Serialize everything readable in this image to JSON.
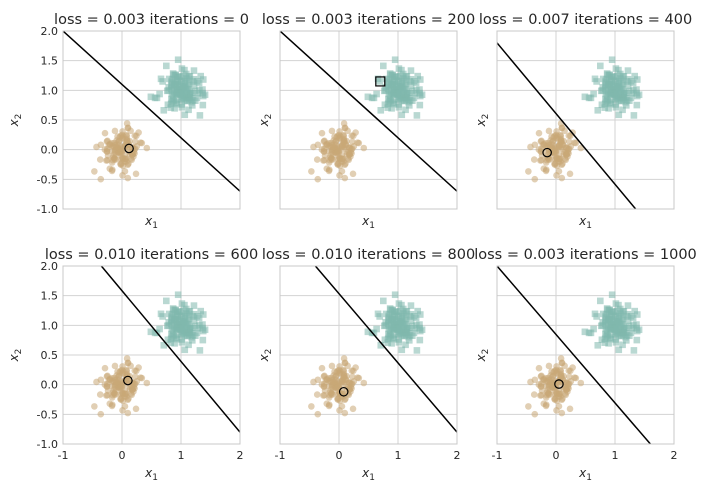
{
  "chart_data": {
    "type": "scatter",
    "figure": {
      "x_label_main": "x",
      "x_label_sub": "1",
      "y_label_main": "x",
      "y_label_sub": "2",
      "xlim": [
        -1,
        2
      ],
      "ylim": [
        -1,
        2
      ],
      "x_ticks": [
        -1,
        0,
        1,
        2
      ],
      "y_ticks": [
        -1.0,
        -0.5,
        0.0,
        0.5,
        1.0,
        1.5,
        2.0
      ],
      "grid": true,
      "colors": {
        "class0": "#c9a777",
        "class1": "#7fb8ad",
        "boundary": "#000000",
        "grid": "#d3d3d3",
        "spine": "#c8c8c8"
      },
      "clusters": {
        "class0": {
          "center": [
            0.0,
            0.0
          ],
          "spread": 0.18,
          "count": 130,
          "marker": "circle"
        },
        "class1": {
          "center": [
            1.0,
            1.0
          ],
          "spread": 0.18,
          "count": 130,
          "marker": "square"
        }
      }
    },
    "panels": [
      {
        "title": "loss = 0.003 iterations = 0",
        "show_x_ticks": false,
        "show_y_ticks": true,
        "boundary": [
          [
            -1,
            2.0
          ],
          [
            2,
            -0.7
          ]
        ],
        "highlight": {
          "x": 0.12,
          "y": 0.02,
          "marker": "circle"
        }
      },
      {
        "title": "loss = 0.003 iterations = 200",
        "show_x_ticks": false,
        "show_y_ticks": false,
        "boundary": [
          [
            -1,
            2.0
          ],
          [
            2,
            -0.7
          ]
        ],
        "highlight": {
          "x": 0.7,
          "y": 1.15,
          "marker": "square"
        }
      },
      {
        "title": "loss = 0.007 iterations = 400",
        "show_x_ticks": false,
        "show_y_ticks": false,
        "boundary": [
          [
            -1,
            1.8
          ],
          [
            1.35,
            -1.0
          ]
        ],
        "highlight": {
          "x": -0.15,
          "y": -0.05,
          "marker": "circle"
        }
      },
      {
        "title": "loss = 0.010 iterations = 600",
        "show_x_ticks": true,
        "show_y_ticks": true,
        "boundary": [
          [
            -0.35,
            2.0
          ],
          [
            2,
            -0.8
          ]
        ],
        "highlight": {
          "x": 0.1,
          "y": 0.07,
          "marker": "circle"
        }
      },
      {
        "title": "loss = 0.010 iterations = 800",
        "show_x_ticks": true,
        "show_y_ticks": false,
        "boundary": [
          [
            -0.4,
            2.0
          ],
          [
            2,
            -0.8
          ]
        ],
        "highlight": {
          "x": 0.08,
          "y": -0.12,
          "marker": "circle"
        }
      },
      {
        "title": "loss = 0.003 iterations = 1000",
        "show_x_ticks": true,
        "show_y_ticks": false,
        "boundary": [
          [
            -1,
            2.0
          ],
          [
            1.6,
            -1.0
          ]
        ],
        "highlight": {
          "x": 0.05,
          "y": 0.01,
          "marker": "circle"
        }
      }
    ]
  }
}
